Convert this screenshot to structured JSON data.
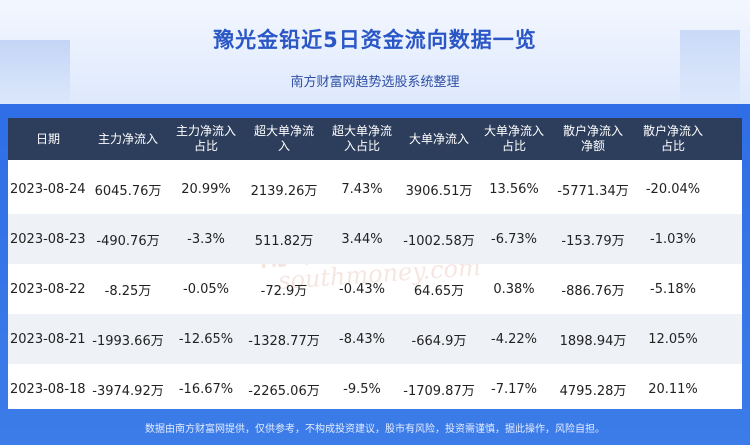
{
  "header": {
    "title": "豫光金铅近5日资金流向数据一览",
    "subtitle": "南方财富网趋势选股系统整理"
  },
  "table": {
    "columns": [
      "日期",
      "主力净流入",
      "主力净流入\n占比",
      "超大单净流\n入",
      "超大单净流\n入占比",
      "大单净流入",
      "大单净流入\n占比",
      "散户净流入\n净额",
      "散户净流入\n占比"
    ],
    "rows": [
      [
        "2023-08-24",
        "6045.76万",
        "20.99%",
        "2139.26万",
        "7.43%",
        "3906.51万",
        "13.56%",
        "-5771.34万",
        "-20.04%"
      ],
      [
        "2023-08-23",
        "-490.76万",
        "-3.3%",
        "511.82万",
        "3.44%",
        "-1002.58万",
        "-6.73%",
        "-153.79万",
        "-1.03%"
      ],
      [
        "2023-08-22",
        "-8.25万",
        "-0.05%",
        "-72.9万",
        "-0.43%",
        "64.65万",
        "0.38%",
        "-886.76万",
        "-5.18%"
      ],
      [
        "2023-08-21",
        "-1993.66万",
        "-12.65%",
        "-1328.77万",
        "-8.43%",
        "-664.9万",
        "-4.22%",
        "1898.94万",
        "12.05%"
      ],
      [
        "2023-08-18",
        "-3974.92万",
        "-16.67%",
        "-2265.06万",
        "-9.5%",
        "-1709.87万",
        "-7.17%",
        "4795.28万",
        "20.11%"
      ]
    ]
  },
  "watermark": {
    "cn": "南方财富网",
    "en": "southmoney.com"
  },
  "footer": {
    "disclaimer": "数据由南方财富网提供，仅供参考，不构成投资建议，股市有风险，投资需谨慎，据此操作，风险自担。"
  },
  "colors": {
    "title": "#2a56c6",
    "header_bg": "#2d3e5c",
    "band": "#2f6ee6",
    "alt_row": "#eef1f6"
  }
}
